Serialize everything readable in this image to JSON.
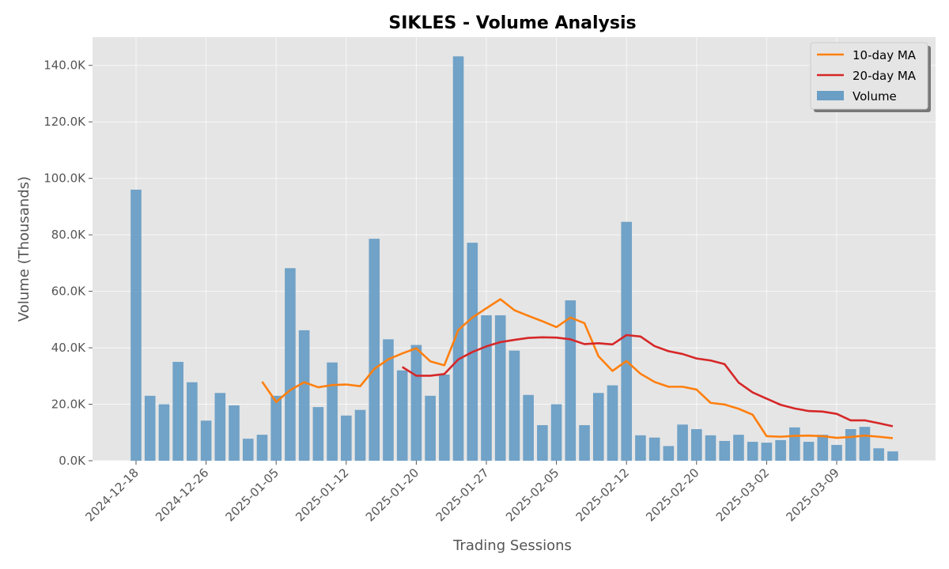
{
  "chart_data": {
    "type": "bar",
    "title": "SIKLES - Volume Analysis",
    "xlabel": "Trading Sessions",
    "ylabel": "Volume (Thousands)",
    "ylim": [
      0,
      150
    ],
    "yticks": [
      0,
      20,
      40,
      60,
      80,
      100,
      120,
      140
    ],
    "ytick_labels": [
      "0.0K",
      "20.0K",
      "40.0K",
      "60.0K",
      "80.0K",
      "100.0K",
      "120.0K",
      "140.0K"
    ],
    "xtick_labels": [
      {
        "index": 0,
        "label": "2024-12-18"
      },
      {
        "index": 5,
        "label": "2024-12-26"
      },
      {
        "index": 10,
        "label": "2025-01-05"
      },
      {
        "index": 15,
        "label": "2025-01-12"
      },
      {
        "index": 20,
        "label": "2025-01-20"
      },
      {
        "index": 25,
        "label": "2025-01-27"
      },
      {
        "index": 30,
        "label": "2025-02-05"
      },
      {
        "index": 35,
        "label": "2025-02-12"
      },
      {
        "index": 40,
        "label": "2025-02-20"
      },
      {
        "index": 45,
        "label": "2025-03-02"
      },
      {
        "index": 50,
        "label": "2025-03-09"
      }
    ],
    "grid": true,
    "legend_position": "top-right",
    "series": [
      {
        "name": "10-day MA",
        "type": "line",
        "color": "#ff7f0e",
        "start_index": 9,
        "values": [
          28.0,
          20.8,
          25.0,
          27.8,
          26.0,
          26.8,
          27.0,
          26.4,
          32.5,
          35.9,
          38.0,
          39.8,
          35.2,
          33.8,
          46.3,
          50.7,
          54.0,
          57.2,
          53.3,
          51.3,
          49.4,
          47.3,
          50.7,
          48.7,
          37.0,
          31.8,
          35.3,
          30.8,
          27.9,
          26.2,
          26.2,
          25.2,
          20.5,
          19.9,
          18.4,
          16.3,
          8.7,
          8.5,
          8.8,
          8.9,
          8.7,
          8.1,
          8.4,
          8.9,
          8.5,
          8.0
        ]
      },
      {
        "name": "20-day MA",
        "type": "line",
        "color": "#d62728",
        "start_index": 19,
        "values": [
          33.2,
          30.1,
          30.1,
          30.7,
          35.9,
          38.5,
          40.5,
          42.0,
          42.8,
          43.5,
          43.7,
          43.6,
          43.0,
          41.3,
          41.6,
          41.2,
          44.5,
          44.0,
          40.6,
          38.8,
          37.8,
          36.2,
          35.5,
          34.2,
          27.7,
          24.2,
          22.0,
          19.8,
          18.5,
          17.6,
          17.4,
          16.6,
          14.3,
          14.3,
          13.3,
          12.2
        ]
      },
      {
        "name": "Volume",
        "type": "bar",
        "color": "#6a9ec5",
        "start_index": 0,
        "values": [
          96.0,
          23.0,
          20.0,
          35.0,
          27.8,
          14.2,
          24.0,
          19.6,
          7.8,
          9.2,
          23.0,
          68.2,
          46.2,
          19.0,
          34.8,
          16.0,
          18.0,
          78.6,
          43.0,
          32.0,
          41.0,
          23.0,
          30.5,
          143.2,
          77.2,
          51.5,
          51.5,
          39.0,
          23.3,
          12.6,
          20.0,
          56.8,
          12.6,
          24.0,
          26.7,
          84.6,
          9.0,
          8.2,
          5.2,
          12.8,
          11.2,
          9.0,
          7.0,
          9.2,
          6.7,
          6.4,
          7.3,
          11.8,
          6.7,
          9.2,
          5.6,
          11.2,
          12.0,
          4.4,
          3.3
        ]
      }
    ]
  }
}
